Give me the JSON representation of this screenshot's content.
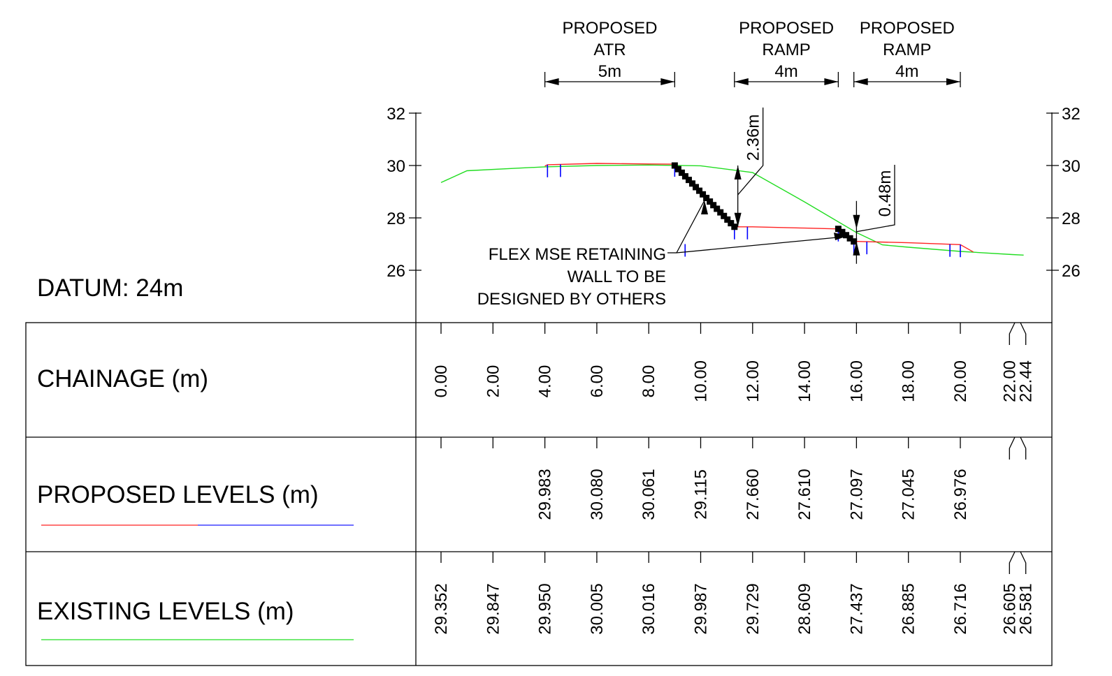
{
  "datum_label": "DATUM: 24m",
  "dimensions": [
    {
      "label_lines": [
        "PROPOSED",
        "ATR"
      ],
      "width_label": "5m",
      "from_ch": 4.0,
      "to_ch": 9.0
    },
    {
      "label_lines": [
        "PROPOSED",
        "RAMP"
      ],
      "width_label": "4m",
      "from_ch": 11.3,
      "to_ch": 15.3
    },
    {
      "label_lines": [
        "PROPOSED",
        "RAMP"
      ],
      "width_label": "4m",
      "from_ch": 15.9,
      "to_ch": 20.0
    }
  ],
  "height_annotations": [
    {
      "label": "2.36m"
    },
    {
      "label": "0.48m"
    }
  ],
  "wall_note": [
    "FLEX MSE RETAINING",
    "WALL TO BE",
    "DESIGNED BY OTHERS"
  ],
  "table": {
    "rows": [
      {
        "label": "CHAINAGE (m)"
      },
      {
        "label": "PROPOSED LEVELS (m)"
      },
      {
        "label": "EXISTING LEVELS (m)"
      }
    ]
  },
  "colors": {
    "existing": "#22dd22",
    "proposed": "#ff2222",
    "proposed_alt": "#1a1aff",
    "wall": "#000000",
    "marker": "#0000ff"
  },
  "chart_data": {
    "type": "line",
    "yticks": [
      "26",
      "28",
      "30",
      "32"
    ],
    "ylim": [
      24,
      32
    ],
    "chainage_labels": [
      {
        "ch": 0,
        "label": "0.00"
      },
      {
        "ch": 2,
        "label": "2.00"
      },
      {
        "ch": 4,
        "label": "4.00"
      },
      {
        "ch": 6,
        "label": "6.00"
      },
      {
        "ch": 8,
        "label": "8.00"
      },
      {
        "ch": 10,
        "label": "10.00"
      },
      {
        "ch": 12,
        "label": "12.00"
      },
      {
        "ch": 14,
        "label": "14.00"
      },
      {
        "ch": 16,
        "label": "16.00"
      },
      {
        "ch": 18,
        "label": "18.00"
      },
      {
        "ch": 20,
        "label": "20.00"
      },
      {
        "ch": 22,
        "label": "22.00"
      },
      {
        "ch": 22.44,
        "label": "22.44"
      }
    ],
    "proposed_levels": [
      {
        "ch": 4,
        "label": "29.983"
      },
      {
        "ch": 6,
        "label": "30.080"
      },
      {
        "ch": 8,
        "label": "30.061"
      },
      {
        "ch": 10,
        "label": "29.115"
      },
      {
        "ch": 12,
        "label": "27.660"
      },
      {
        "ch": 14,
        "label": "27.610"
      },
      {
        "ch": 16,
        "label": "27.097"
      },
      {
        "ch": 18,
        "label": "27.045"
      },
      {
        "ch": 20,
        "label": "26.976"
      }
    ],
    "existing_levels": [
      {
        "ch": 0,
        "label": "29.352"
      },
      {
        "ch": 2,
        "label": "29.847"
      },
      {
        "ch": 4,
        "label": "29.950"
      },
      {
        "ch": 6,
        "label": "30.005"
      },
      {
        "ch": 8,
        "label": "30.016"
      },
      {
        "ch": 10,
        "label": "29.987"
      },
      {
        "ch": 12,
        "label": "29.729"
      },
      {
        "ch": 14,
        "label": "28.609"
      },
      {
        "ch": 16,
        "label": "27.437"
      },
      {
        "ch": 18,
        "label": "26.885"
      },
      {
        "ch": 20,
        "label": "26.716"
      },
      {
        "ch": 22,
        "label": "26.605"
      },
      {
        "ch": 22.44,
        "label": "26.581"
      }
    ],
    "existing_profile": [
      [
        0,
        29.35
      ],
      [
        1,
        29.8
      ],
      [
        4,
        29.95
      ],
      [
        6,
        30.0
      ],
      [
        8,
        30.02
      ],
      [
        10,
        29.99
      ],
      [
        12,
        29.73
      ],
      [
        14,
        28.61
      ],
      [
        16,
        27.44
      ],
      [
        17,
        26.97
      ],
      [
        18,
        26.88
      ],
      [
        20,
        26.72
      ],
      [
        22,
        26.6
      ],
      [
        22.44,
        26.58
      ]
    ],
    "proposed_profile_1": [
      [
        4,
        29.98
      ],
      [
        4.1,
        30.03
      ],
      [
        6,
        30.08
      ],
      [
        8,
        30.06
      ],
      [
        9,
        30.05
      ]
    ],
    "proposed_profile_2": [
      [
        11.3,
        27.66
      ],
      [
        12,
        27.66
      ],
      [
        14,
        27.61
      ],
      [
        15.3,
        27.58
      ]
    ],
    "proposed_profile_3": [
      [
        15.9,
        27.1
      ],
      [
        16,
        27.1
      ],
      [
        18,
        27.05
      ],
      [
        20,
        26.98
      ],
      [
        20.5,
        26.7
      ]
    ],
    "wall_1": [
      [
        9,
        30.0
      ],
      [
        11.3,
        27.66
      ]
    ],
    "wall_2": [
      [
        15.3,
        27.58
      ],
      [
        15.9,
        27.1
      ]
    ],
    "marker_chainages": [
      4.1,
      4.6,
      9.0,
      9.4,
      11.3,
      11.8,
      15.3,
      15.9,
      16.4,
      19.6,
      20.0
    ],
    "height_dims": [
      {
        "ch": 11.0,
        "top": 30.0,
        "bottom": 27.66
      },
      {
        "ch": 16.0,
        "top": 27.58,
        "bottom": 27.1
      }
    ]
  }
}
